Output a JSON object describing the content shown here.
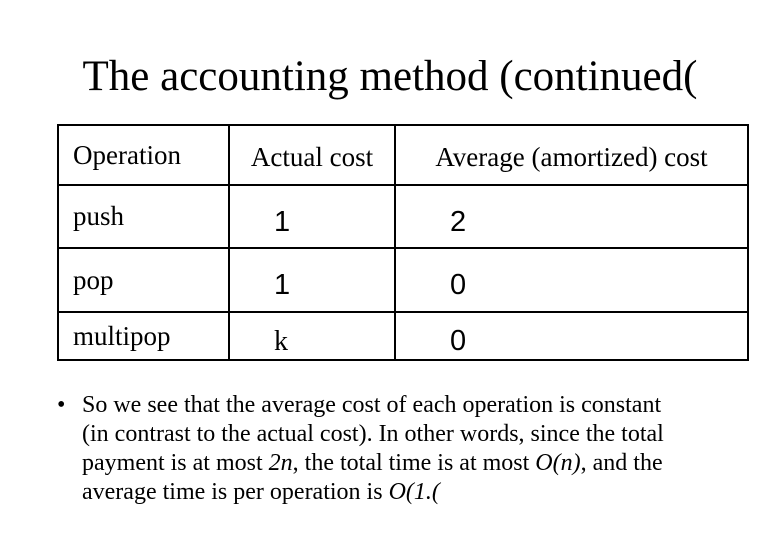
{
  "slide": {
    "title": "The accounting method (continued(",
    "colors": {
      "background": "#ffffff",
      "text": "#000000",
      "table_border": "#000000"
    }
  },
  "table": {
    "headers": [
      "Operation",
      "Actual cost",
      "Average (amortized) cost"
    ],
    "rows": [
      {
        "operation": "push",
        "actual_cost": "1",
        "amortized_cost": "2"
      },
      {
        "operation": "pop",
        "actual_cost": "1",
        "amortized_cost": "0"
      },
      {
        "operation": "multipop",
        "actual_cost": "k",
        "amortized_cost": "0"
      }
    ]
  },
  "bullet": {
    "marker": "•",
    "lines": [
      [
        {
          "t": "So we see that the average cost of each operation is constant"
        }
      ],
      [
        {
          "t": "(in contrast to the actual cost). In other words, since the total"
        }
      ],
      [
        {
          "t": "payment is at most "
        },
        {
          "t": "2n",
          "i": true
        },
        {
          "t": ", the total time is at most "
        },
        {
          "t": "O(n)",
          "i": true
        },
        {
          "t": ", and the"
        }
      ],
      [
        {
          "t": "average time is per operation is "
        },
        {
          "t": "O(1.(",
          "i": true
        }
      ]
    ]
  }
}
